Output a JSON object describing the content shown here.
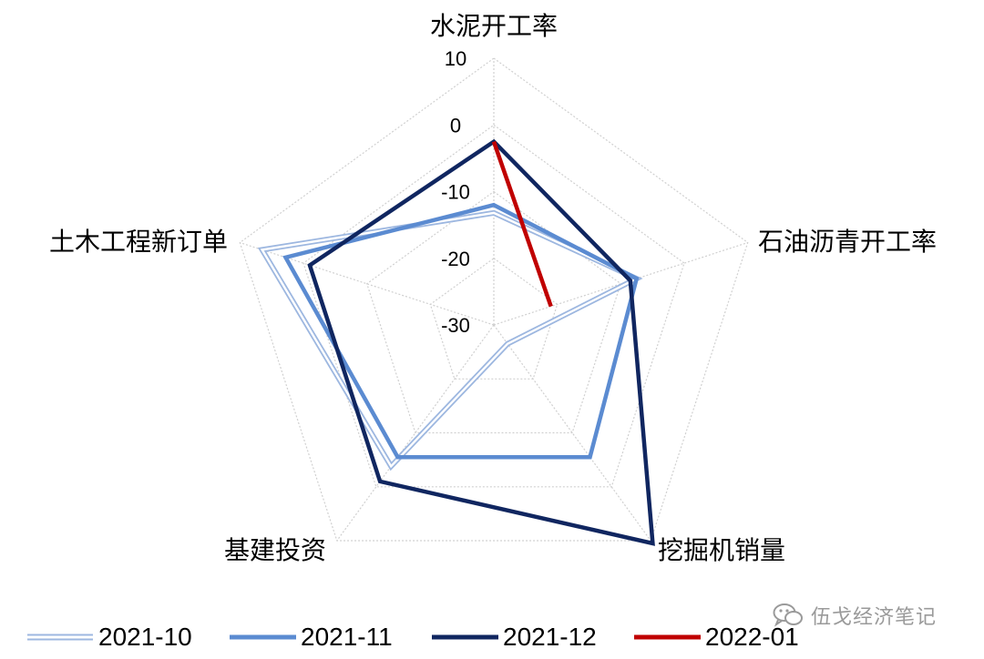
{
  "chart_data": {
    "type": "radar",
    "axes": [
      "水泥开工率",
      "石油沥青开工率",
      "挖掘机销量",
      "基建投资",
      "土木工程新订单"
    ],
    "rlim": [
      -30,
      10
    ],
    "ticks": [
      10,
      0,
      -10,
      -20,
      -30
    ],
    "tick_labels": [
      "10",
      "0",
      "-10",
      "-20",
      "-30"
    ],
    "grid": true,
    "legend_position": "bottom",
    "series": [
      {
        "name": "2021-10",
        "color": "#9db7e0",
        "style": "double",
        "values": [
          -13.2,
          -7.5,
          -26.5,
          -3.8,
          6.5
        ]
      },
      {
        "name": "2021-11",
        "color": "#5b8bd1",
        "style": "solid",
        "values": [
          -12.0,
          -7.5,
          -5.5,
          -5.5,
          2.8
        ]
      },
      {
        "name": "2021-12",
        "color": "#102660",
        "style": "solid",
        "values": [
          -2.5,
          -8.5,
          10.5,
          -1.0,
          -1.0
        ]
      },
      {
        "name": "2022-01",
        "color": "#c00000",
        "style": "solid",
        "values": [
          -2.5,
          -21.0,
          null,
          null,
          null
        ]
      }
    ]
  },
  "watermark": {
    "text": "伍戈经济笔记",
    "icon": "wechat-icon"
  }
}
